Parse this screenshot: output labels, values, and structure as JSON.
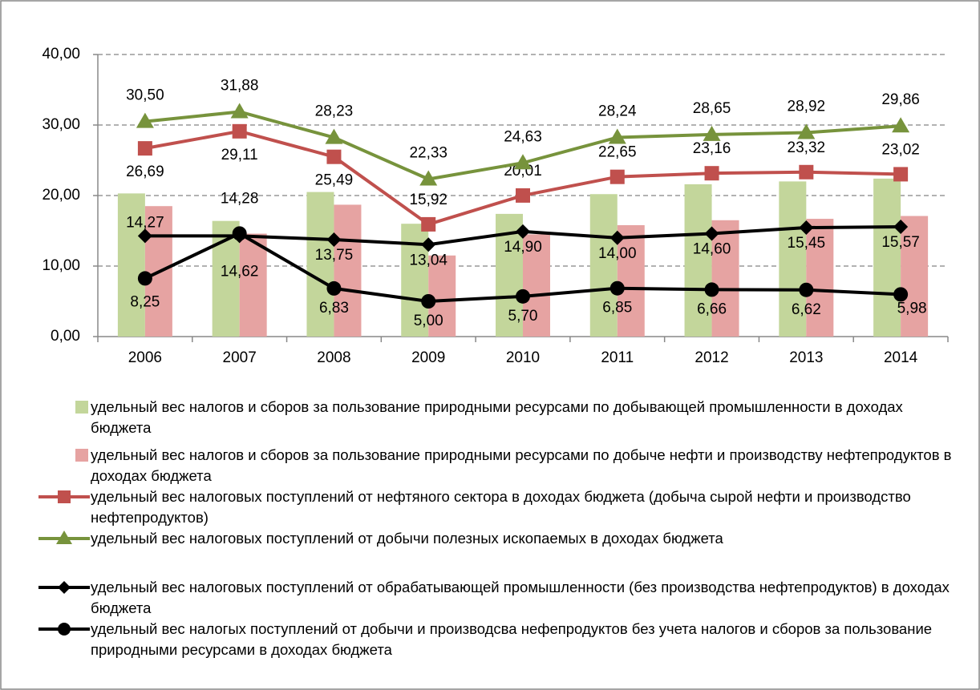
{
  "chart_data": {
    "type": "bar_line",
    "categories": [
      "2006",
      "2007",
      "2008",
      "2009",
      "2010",
      "2011",
      "2012",
      "2013",
      "2014"
    ],
    "ylim": [
      0,
      40
    ],
    "yticks": [
      {
        "value": 0,
        "label": "0,00"
      },
      {
        "value": 10,
        "label": "10,00"
      },
      {
        "value": 20,
        "label": "20,00"
      },
      {
        "value": 30,
        "label": "30,00"
      },
      {
        "value": 40,
        "label": "40,00"
      }
    ],
    "grid": true,
    "series": [
      {
        "name": "удельный вес налогов и сборов за пользование природными ресурсами по добывающей промышленности в доходах бюджета",
        "kind": "bar",
        "color": "#c3d69b",
        "values": [
          20.3,
          16.4,
          20.5,
          16.0,
          17.4,
          20.2,
          21.6,
          22.0,
          22.4
        ]
      },
      {
        "name": "удельный вес налогов и сборов за пользование природными ресурсами по добыче нефти и производству нефтепродуктов в доходах бюджета",
        "kind": "bar",
        "color": "#e6a3a2",
        "values": [
          18.5,
          14.6,
          18.7,
          11.5,
          14.5,
          15.8,
          16.5,
          16.7,
          17.1
        ]
      },
      {
        "name": "удельный вес налоговых поступлений от нефтяного сектора в доходах бюджета (добыча сырой нефти и производство нефтепродуктов)",
        "kind": "line",
        "marker": "square",
        "color": "#c0504d",
        "values": [
          26.69,
          29.11,
          25.49,
          15.92,
          20.01,
          22.65,
          23.16,
          23.32,
          23.02
        ],
        "value_labels": [
          "26,69",
          "29,11",
          "25,49",
          "15,92",
          "20,01",
          "22,65",
          "23,16",
          "23,32",
          "23,02"
        ]
      },
      {
        "name": "удельный вес налоговых поступлений от добычи полезных ископаемых в доходах бюджета",
        "kind": "line",
        "marker": "triangle",
        "color": "#77933c",
        "values": [
          30.5,
          31.88,
          28.23,
          22.33,
          24.63,
          28.24,
          28.65,
          28.92,
          29.86
        ],
        "value_labels": [
          "30,50",
          "31,88",
          "28,23",
          "22,33",
          "24,63",
          "28,24",
          "28,65",
          "28,92",
          "29,86"
        ]
      },
      {
        "name": "удельный вес налоговых поступлений от обрабатывающей промышленности (без производства нефтепродуктов) в доходах бюджета",
        "kind": "line",
        "marker": "diamond",
        "color": "#000000",
        "values": [
          14.27,
          14.28,
          13.75,
          13.04,
          14.9,
          14.0,
          14.6,
          15.45,
          15.57
        ],
        "value_labels": [
          "14,27",
          "14,28",
          "13,75",
          "13,04",
          "14,90",
          "14,00",
          "14,60",
          "15,45",
          "15,57"
        ]
      },
      {
        "name": "удельный вес налогых поступлений от добычи и производсва нефепродуктов без учета налогов и сборов за пользование природными ресурсами в доходах бюджета",
        "kind": "line",
        "marker": "circle",
        "color": "#000000",
        "values": [
          8.25,
          14.62,
          6.83,
          5.0,
          5.7,
          6.85,
          6.66,
          6.62,
          5.98
        ],
        "value_labels": [
          "8,25",
          "14,62",
          "6,83",
          "5,00",
          "5,70",
          "6,85",
          "6,66",
          "6,62",
          "5,98"
        ]
      }
    ]
  }
}
